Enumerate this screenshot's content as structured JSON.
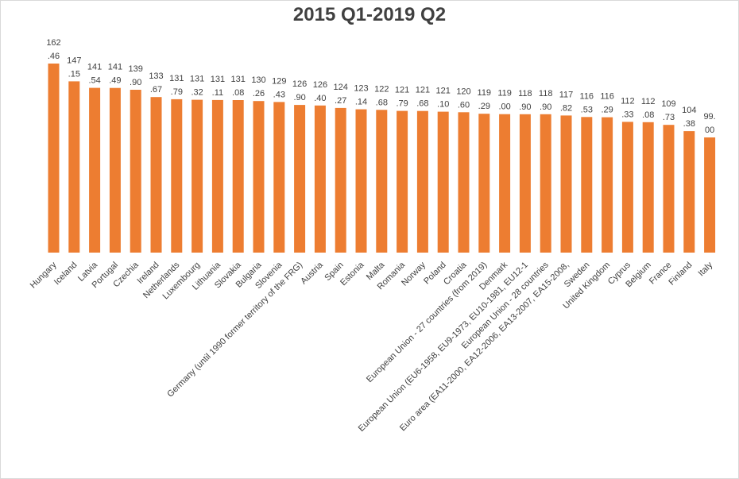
{
  "chart_data": {
    "type": "bar",
    "title": "2015 Q1-2019 Q2",
    "xlabel": "",
    "ylabel": "",
    "ylim": [
      0,
      162.46
    ],
    "bar_color": "#ED7D31",
    "categories": [
      "Hungary",
      "Iceland",
      "Latvia",
      "Portugal",
      "Czechia",
      "Ireland",
      "Netherlands",
      "Luxembourg",
      "Lithuania",
      "Slovakia",
      "Bulgaria",
      "Slovenia",
      "Germany (until 1990 former territory of the FRG)",
      "Austria",
      "Spain",
      "Estonia",
      "Malta",
      "Romania",
      "Norway",
      "Poland",
      "Croatia",
      "European Union - 27 countries (from 2019)",
      "Denmark",
      "European Union (EU6-1958, EU9-1973, EU10-1981, EU12-1",
      "European Union - 28 countries",
      "Euro area (EA11-2000, EA12-2006, EA13-2007, EA15-2008,",
      "Sweden",
      "United Kingdom",
      "Cyprus",
      "Belgium",
      "France",
      "Finland",
      "Italy"
    ],
    "values": [
      162.46,
      147.15,
      141.54,
      141.49,
      139.9,
      133.67,
      131.79,
      131.32,
      131.11,
      131.08,
      130.26,
      129.43,
      126.9,
      126.4,
      124.27,
      123.14,
      122.68,
      121.79,
      121.68,
      121.1,
      120.6,
      119.29,
      119.0,
      118.9,
      118.9,
      117.82,
      116.53,
      116.29,
      112.33,
      112.08,
      109.73,
      104.38,
      99.0
    ],
    "data_labels": [
      [
        "162",
        ".46"
      ],
      [
        "147",
        ".15"
      ],
      [
        "141",
        ".54"
      ],
      [
        "141",
        ".49"
      ],
      [
        "139",
        ".90"
      ],
      [
        "133",
        ".67"
      ],
      [
        "131",
        ".79"
      ],
      [
        "131",
        ".32"
      ],
      [
        "131",
        ".11"
      ],
      [
        "131",
        ".08"
      ],
      [
        "130",
        ".26"
      ],
      [
        "129",
        ".43"
      ],
      [
        "126",
        ".90"
      ],
      [
        "126",
        ".40"
      ],
      [
        "124",
        ".27"
      ],
      [
        "123",
        ".14"
      ],
      [
        "122",
        ".68"
      ],
      [
        "121",
        ".79"
      ],
      [
        "121",
        ".68"
      ],
      [
        "121",
        ".10"
      ],
      [
        "120",
        ".60"
      ],
      [
        "119",
        ".29"
      ],
      [
        "119",
        ".00"
      ],
      [
        "118",
        ".90"
      ],
      [
        "118",
        ".90"
      ],
      [
        "117",
        ".82"
      ],
      [
        "116",
        ".53"
      ],
      [
        "116",
        ".29"
      ],
      [
        "112",
        ".33"
      ],
      [
        "112",
        ".08"
      ],
      [
        "109",
        ".73"
      ],
      [
        "104",
        ".38"
      ],
      [
        "99.",
        "00"
      ]
    ],
    "grid": false,
    "legend": "none"
  }
}
